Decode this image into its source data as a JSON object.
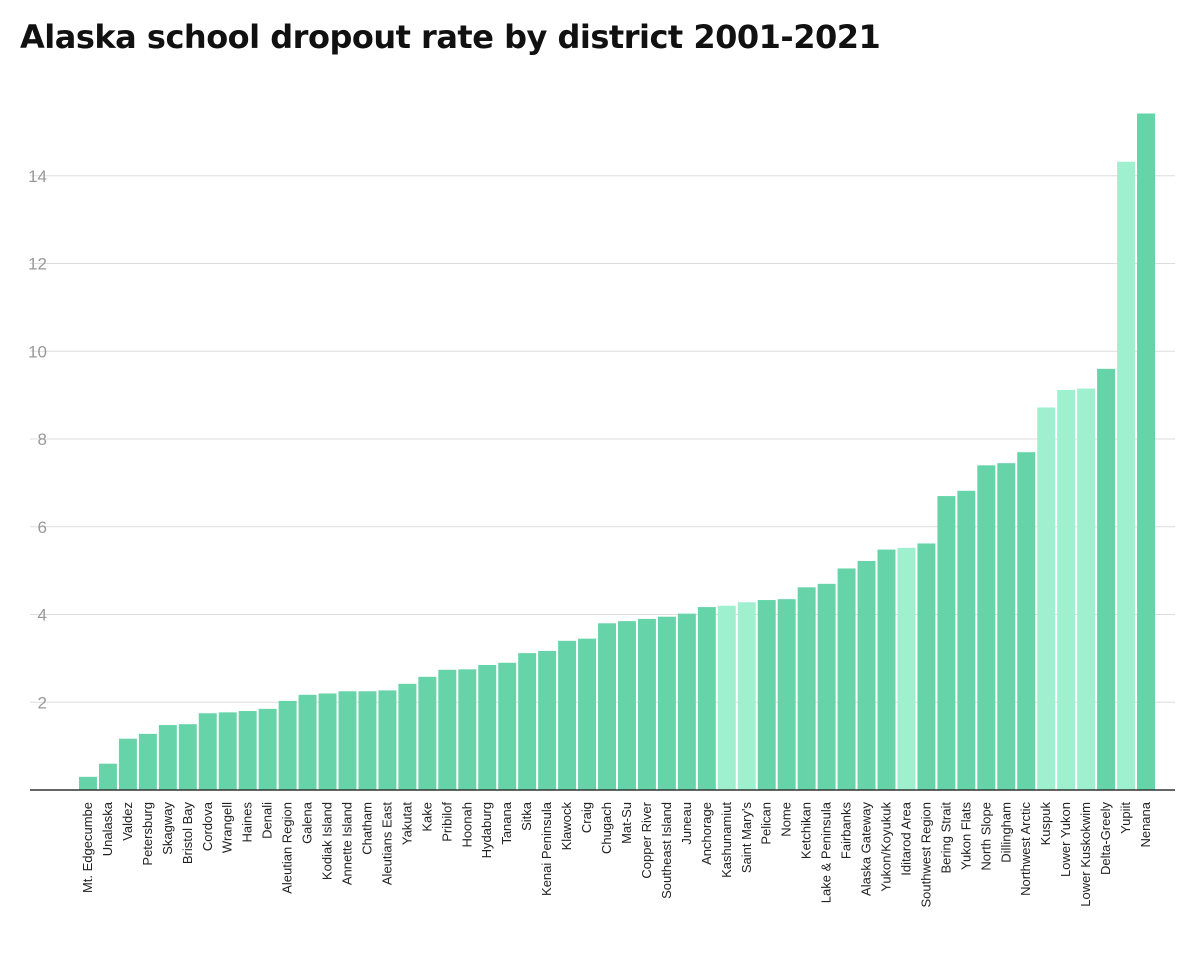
{
  "chart_data": {
    "type": "bar",
    "title": "Alaska school dropout rate by district 2001-2021",
    "xlabel": "",
    "ylabel": "",
    "ylim": [
      0,
      15.5
    ],
    "yticks": [
      2,
      4,
      6,
      8,
      10,
      12,
      14
    ],
    "grid": true,
    "legend": "none",
    "colors": {
      "default": "#66d4a8",
      "highlight": "#9ff0cf"
    },
    "categories": [
      "Mt. Edgecumbe",
      "Unalaska",
      "Valdez",
      "Petersburg",
      "Skagway",
      "Bristol Bay",
      "Cordova",
      "Wrangell",
      "Haines",
      "Denali",
      "Aleutian Region",
      "Galena",
      "Kodiak Island",
      "Annette Island",
      "Chatham",
      "Aleutians East",
      "Yakutat",
      "Kake",
      "Pribilof",
      "Hoonah",
      "Hydaburg",
      "Tanana",
      "Sitka",
      "Kenai Peninsula",
      "Klawock",
      "Craig",
      "Chugach",
      "Mat-Su",
      "Copper River",
      "Southeast Island",
      "Juneau",
      "Anchorage",
      "Kashunamiut",
      "Saint Mary's",
      "Pelican",
      "Nome",
      "Ketchikan",
      "Lake & Peninsula",
      "Fairbanks",
      "Alaska Gateway",
      "Yukon/Koyukuk",
      "Iditarod Area",
      "Southwest Region",
      "Bering Strait",
      "Yukon Flats",
      "North Slope",
      "Dillingham",
      "Northwest Arctic",
      "Kuspuk",
      "Lower Yukon",
      "Lower Kuskokwim",
      "Delta-Greely",
      "Yupiit",
      "Nenana"
    ],
    "values": [
      0.3,
      0.6,
      1.17,
      1.28,
      1.48,
      1.5,
      1.75,
      1.77,
      1.8,
      1.85,
      2.03,
      2.17,
      2.2,
      2.25,
      2.25,
      2.27,
      2.42,
      2.58,
      2.74,
      2.75,
      2.85,
      2.9,
      3.12,
      3.17,
      3.4,
      3.45,
      3.8,
      3.85,
      3.9,
      3.95,
      4.02,
      4.17,
      4.2,
      4.28,
      4.33,
      4.35,
      4.62,
      4.7,
      5.05,
      5.22,
      5.48,
      5.52,
      5.62,
      6.7,
      6.82,
      7.4,
      7.45,
      7.7,
      8.72,
      9.12,
      9.15,
      9.6,
      14.32,
      15.42
    ],
    "highlighted": [
      "Kashunamiut",
      "Saint Mary's",
      "Iditarod Area",
      "Kuspuk",
      "Lower Yukon",
      "Lower Kuskokwim",
      "Yupiit"
    ]
  }
}
